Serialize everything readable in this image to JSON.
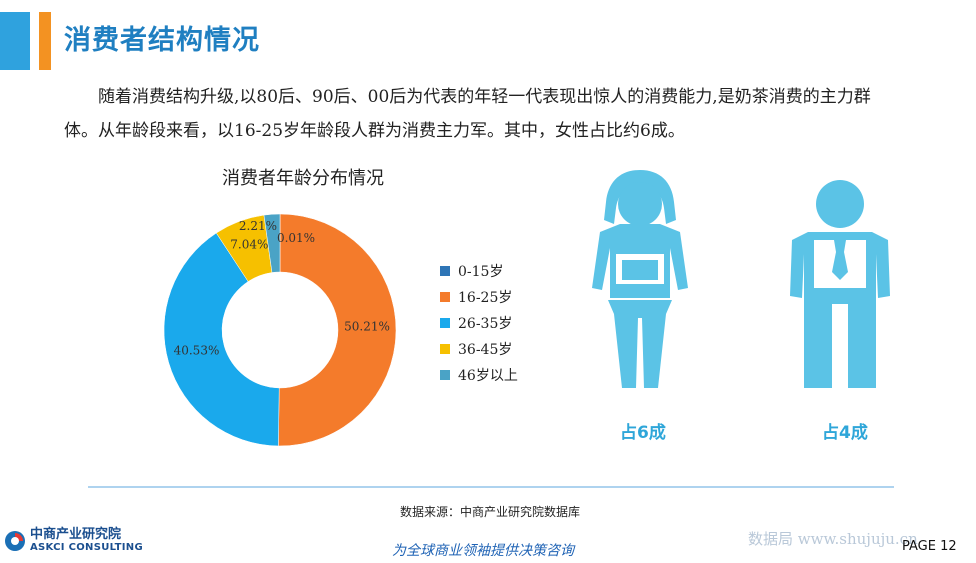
{
  "title": "消费者结构情况",
  "intro": "随着消费结构升级,以80后、90后、00后为代表的年轻一代表现出惊人的消费能力,是奶茶消费的主力群体。从年龄段来看，以16-25岁年龄段人群为消费主力军。其中，女性占比约6成。",
  "chart_data": {
    "type": "pie",
    "donut": true,
    "title": "消费者年龄分布情况",
    "legend_position": "right",
    "categories": [
      "0-15岁",
      "16-25岁",
      "26-35岁",
      "36-45岁",
      "46岁以上"
    ],
    "values": [
      0.01,
      50.21,
      40.53,
      7.04,
      2.21
    ],
    "data_labels": [
      "0.01%",
      "50.21%",
      "40.53%",
      "7.04%",
      "2.21%"
    ],
    "colors": [
      "#2e75b6",
      "#f47b2b",
      "#1aa9ec",
      "#f6c000",
      "#4aa3c6"
    ]
  },
  "gender": {
    "female_label": "占6成",
    "male_label": "占4成",
    "color": "#5bc3e6",
    "icons": [
      "female-figure-icon",
      "male-figure-icon"
    ]
  },
  "source": "数据来源：中商产业研究院数据库",
  "footer": {
    "logo_cn": "中商产业研究院",
    "logo_en": "ASKCI CONSULTING",
    "slogan": "为全球商业领袖提供决策咨询",
    "watermark": "数据局 www.shujuju.cn",
    "page": "PAGE  12"
  },
  "colors": {
    "accent_blue": "#2fa2de",
    "accent_orange": "#f39222",
    "title_blue": "#1f7fc1"
  }
}
